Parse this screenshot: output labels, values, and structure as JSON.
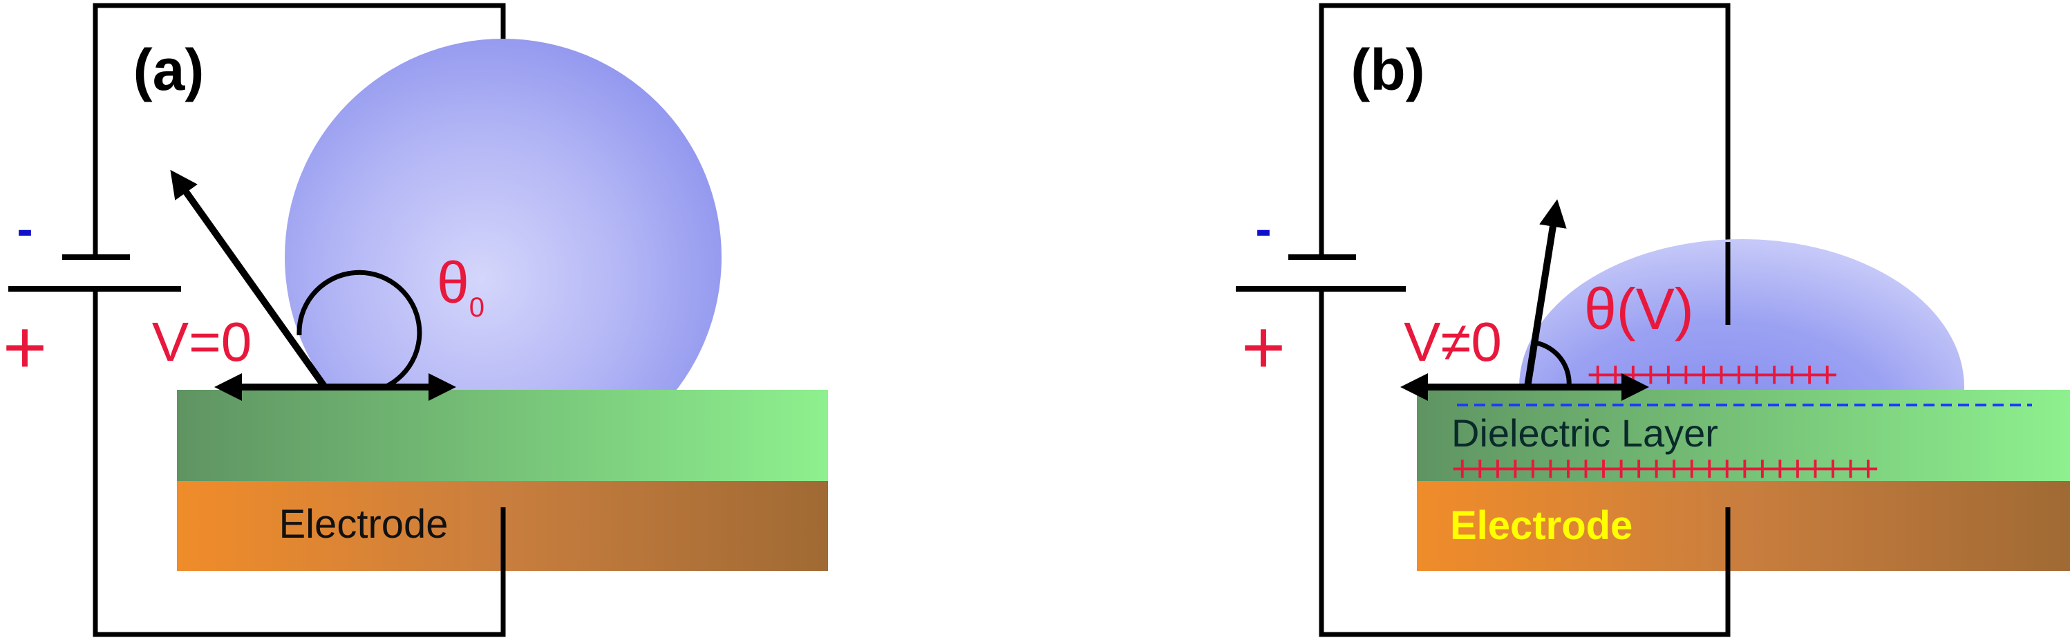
{
  "panels": {
    "a": {
      "label": "(a)",
      "voltage": "V=0",
      "angle": "θ",
      "angle_sub": "0",
      "electrode": "Electrode",
      "minus": "-",
      "plus": "+"
    },
    "b": {
      "label": "(b)",
      "voltage": "V≠0",
      "angle": "θ(V)",
      "dielectric": "Dielectric Layer",
      "electrode": "Electrode",
      "minus": "-",
      "plus": "+",
      "charges_top": "++++++++++++++",
      "charges_bottom": "++++++++++++++++++++++++"
    }
  },
  "colors": {
    "accent_red": "#e8183c",
    "minus_blue": "#1010cc",
    "droplet": "#9aa0f0",
    "dielectric_green": "#6fc97a",
    "electrode_orange": "#d6873c",
    "electrode_label_b": "#ffff00",
    "dashed_line": "#1a3cff"
  },
  "icons": [
    "arrow-icon",
    "angle-arc-icon",
    "battery-icon"
  ]
}
